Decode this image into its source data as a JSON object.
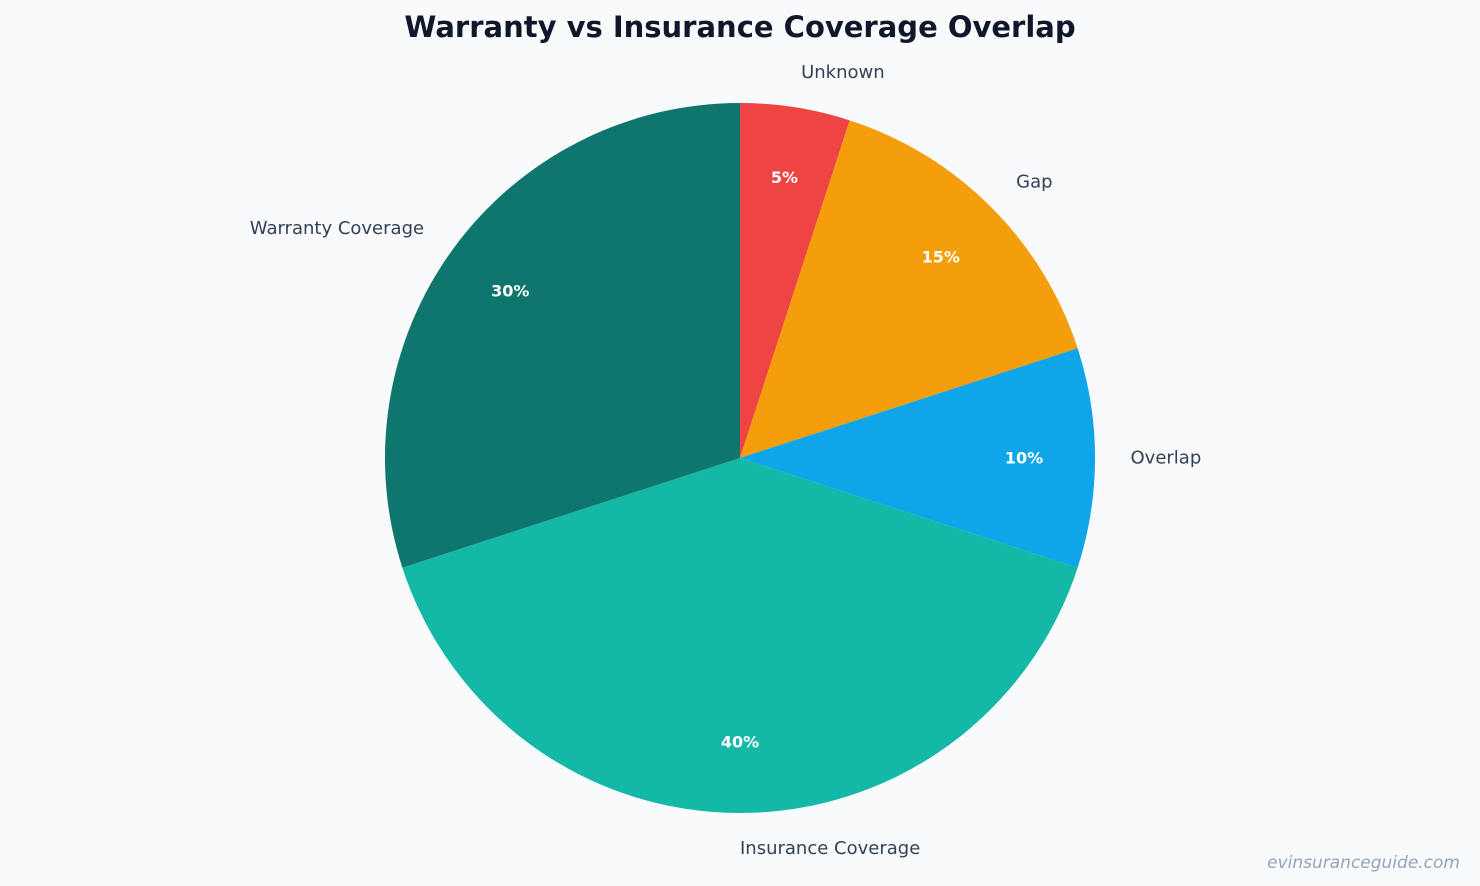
{
  "chart_data": {
    "type": "pie",
    "title": "Warranty vs Insurance Coverage Overlap",
    "start_angle_deg": 90,
    "direction": "clockwise",
    "slices": [
      {
        "label": "Unknown",
        "value": 5,
        "pct_label": "5%",
        "color": "#ef4444"
      },
      {
        "label": "Gap",
        "value": 15,
        "pct_label": "15%",
        "color": "#f59e0b"
      },
      {
        "label": "Overlap",
        "value": 10,
        "pct_label": "10%",
        "color": "#0ea5e9"
      },
      {
        "label": "Insurance Coverage",
        "value": 40,
        "pct_label": "40%",
        "color": "#14b8a6"
      },
      {
        "label": "Warranty Coverage",
        "value": 30,
        "pct_label": "30%",
        "color": "#0f766e"
      }
    ]
  },
  "watermark": "evinsuranceguide.com"
}
